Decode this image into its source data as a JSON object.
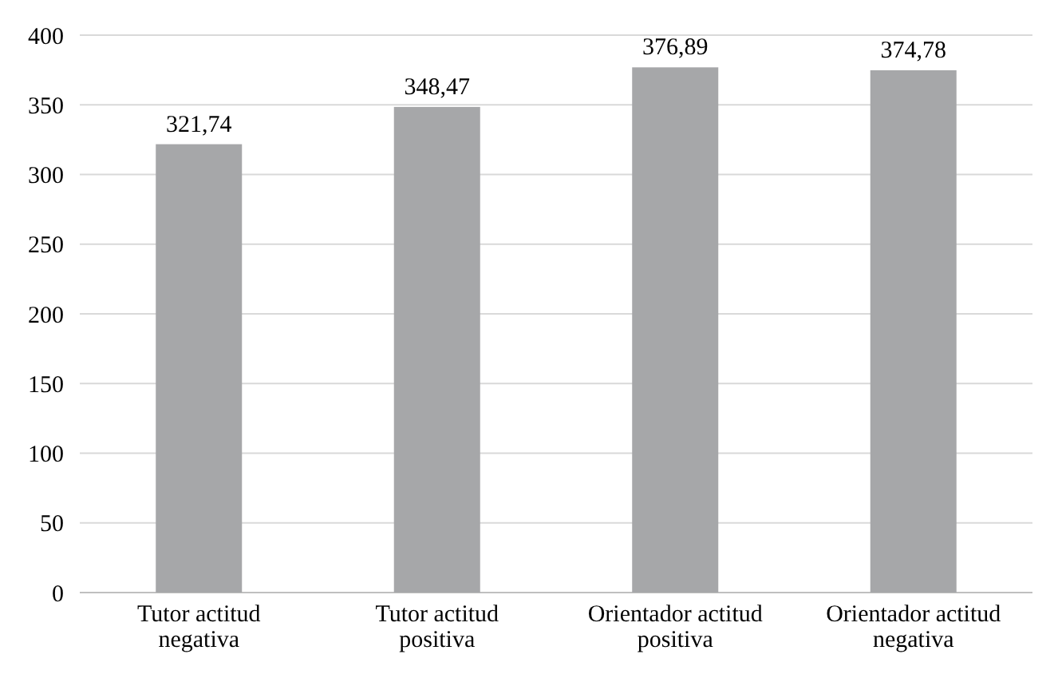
{
  "chart_data": {
    "type": "bar",
    "categories": [
      "Tutor actitud negativa",
      "Tutor actitud positiva",
      "Orientador actitud positiva",
      "Orientador actitud negativa"
    ],
    "values": [
      321.74,
      348.47,
      376.89,
      374.78
    ],
    "value_labels": [
      "321,74",
      "348,47",
      "376,89",
      "374,78"
    ],
    "color": "#a6a7a9",
    "ylim": [
      0,
      400
    ],
    "yticks": [
      0,
      50,
      100,
      150,
      200,
      250,
      300,
      350,
      400
    ],
    "grid": "y"
  }
}
